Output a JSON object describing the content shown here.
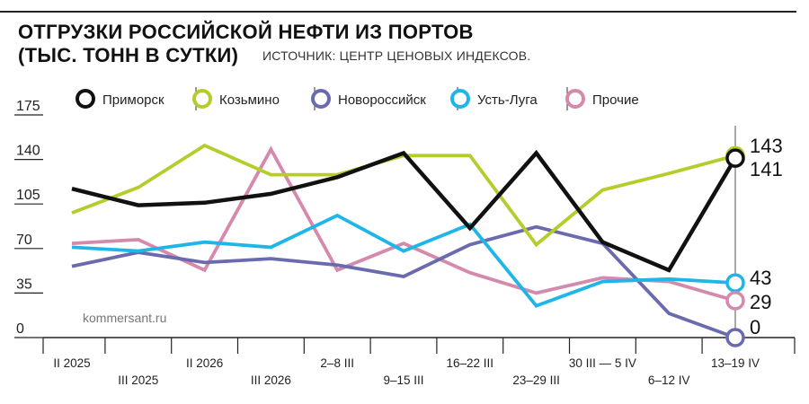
{
  "header": {
    "title_line1": "ОТГРУЗКИ РОССИЙСКОЙ НЕФТИ ИЗ ПОРТОВ",
    "title_line2": "(ТЫС. ТОНН В СУТКИ)",
    "source": "ИСТОЧНИК: ЦЕНТР ЦЕНОВЫХ ИНДЕКСОВ."
  },
  "watermark": "kommersant.ru",
  "colors": {
    "primorsk": "#111111",
    "kozmino": "#b5cc2a",
    "novorossiysk": "#6a6aae",
    "ust_luga": "#1eb6e8",
    "other": "#d589ad",
    "axis": "#222222"
  },
  "chart_data": {
    "type": "line",
    "title": "ОТГРУЗКИ РОССИЙСКОЙ НЕФТИ ИЗ ПОРТОВ (ТЫС. ТОНН В СУТКИ)",
    "xlabel": "",
    "ylabel": "",
    "ylim": [
      0,
      175
    ],
    "yticks": [
      0,
      35,
      70,
      105,
      140,
      175
    ],
    "categories": [
      "II 2025",
      "III 2025",
      "II 2026",
      "III 2026",
      "2–8 III",
      "9–15 III",
      "16–22 III",
      "23–29 III",
      "30 III — 5 IV",
      "6–12 IV",
      "13–19 IV"
    ],
    "legend_position": "top",
    "grid": false,
    "series": [
      {
        "name": "Приморск",
        "color_key": "primorsk",
        "values": [
          117,
          104,
          106,
          113,
          126,
          145,
          86,
          145,
          75,
          53,
          141
        ]
      },
      {
        "name": "Козьмино",
        "color_key": "kozmino",
        "values": [
          98,
          118,
          151,
          128,
          128,
          143,
          143,
          73,
          116,
          129,
          143
        ]
      },
      {
        "name": "Новороссийск",
        "color_key": "novorossiysk",
        "values": [
          56,
          67,
          59,
          62,
          57,
          48,
          73,
          87,
          74,
          19,
          0
        ]
      },
      {
        "name": "Усть-Луга",
        "color_key": "ust_luga",
        "values": [
          71,
          68,
          75,
          71,
          96,
          68,
          89,
          25,
          44,
          46,
          43
        ]
      },
      {
        "name": "Прочие",
        "color_key": "other",
        "values": [
          74,
          77,
          53,
          148,
          53,
          74,
          51,
          35,
          47,
          44,
          29
        ]
      }
    ],
    "end_labels": [
      "143",
      "141",
      "43",
      "29",
      "0"
    ]
  }
}
